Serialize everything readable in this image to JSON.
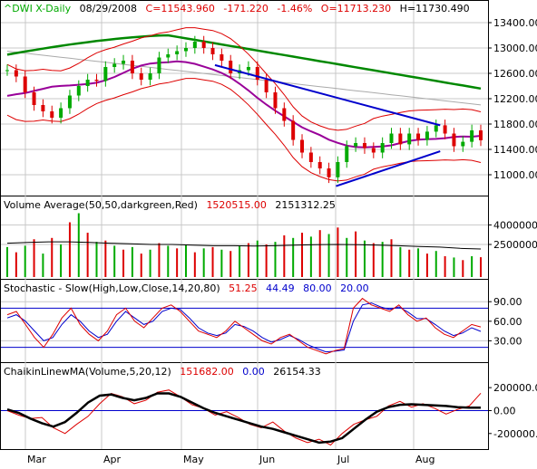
{
  "header": {
    "symbol": "^DWI X-Daily",
    "date": "08/29/2008",
    "close": "C=11543.960",
    "change": "-171.220",
    "change_pct": "-1.46%",
    "open": "O=11713.230",
    "high": "H=11730.490"
  },
  "volume_header": {
    "title": "Volume Average(50,50,darkgreen,Red)",
    "v1": "1520515.00",
    "v2": "2151312.25"
  },
  "stoch_header": {
    "title": "Stochastic - Slow(High,Low,Close,14,20,80)",
    "v1": "51.25",
    "v2": "44.49",
    "v3": "80.00",
    "v4": "20.00"
  },
  "chaikin_header": {
    "title": "ChaikinLinewMA(Volume,5,20,12)",
    "v1": "151682.00",
    "v2": "0.00",
    "v3": "26154.33"
  },
  "months": [
    "Mar",
    "Apr",
    "May",
    "Jun",
    "Jul",
    "Aug"
  ],
  "colors": {
    "green": "#00aa00",
    "red": "#dd0000",
    "blue": "#0000cc",
    "purple": "#990099",
    "darkgreen": "#008800",
    "grid": "#c8c8c8"
  },
  "chart_data": [
    {
      "type": "line",
      "panel": "price",
      "title": "^DWI X-Daily",
      "y_ticks": [
        11000,
        11400,
        11800,
        12200,
        12600,
        13000,
        13400
      ],
      "y_range": [
        10700,
        13500
      ],
      "x_months": [
        "Mar",
        "Apr",
        "May",
        "Jun",
        "Jul",
        "Aug"
      ],
      "close_series": [
        12650,
        12550,
        12300,
        12100,
        12000,
        11900,
        12050,
        12250,
        12400,
        12500,
        12480,
        12700,
        12750,
        12800,
        12600,
        12500,
        12600,
        12850,
        12900,
        12950,
        13000,
        13100,
        13000,
        12900,
        12800,
        12600,
        12650,
        12700,
        12500,
        12300,
        12050,
        11850,
        11550,
        11350,
        11200,
        11100,
        10960,
        11200,
        11450,
        11500,
        11420,
        11350,
        11500,
        11650,
        11480,
        11650,
        11550,
        11680,
        11780,
        11650,
        11450,
        11520,
        11700,
        11543.96
      ],
      "series": [
        {
          "name": "Short MA (purple)"
        },
        {
          "name": "Long MA (green)"
        },
        {
          "name": "Mid MA (grey)"
        },
        {
          "name": "Bollinger bands (red)"
        }
      ],
      "trendlines": [
        {
          "label": "upper",
          "points": [
            [
              0.44,
              12730
            ],
            [
              0.905,
              11780
            ]
          ]
        },
        {
          "label": "lower",
          "points": [
            [
              0.69,
              10820
            ],
            [
              0.905,
              11370
            ]
          ]
        }
      ]
    },
    {
      "type": "bar",
      "panel": "volume",
      "y_ticks": [
        2500000,
        4000000
      ],
      "y_range": [
        0,
        5000000
      ],
      "values": [
        2300000,
        1900000,
        2400000,
        2900000,
        1800000,
        3000000,
        2500000,
        4200000,
        4900000,
        3400000,
        2700000,
        2800000,
        2400000,
        2100000,
        2300000,
        1800000,
        2100000,
        2600000,
        2400000,
        2200000,
        2500000,
        1900000,
        2200000,
        2300000,
        2100000,
        2000000,
        2400000,
        2600000,
        2800000,
        2500000,
        2700000,
        3200000,
        3000000,
        3400000,
        3100000,
        3600000,
        3300000,
        3800000,
        3000000,
        3500000,
        2800000,
        2600000,
        2700000,
        2900000,
        2300000,
        2100000,
        2200000,
        1800000,
        2000000,
        1600000,
        1500000,
        1300000,
        1600000,
        1520515
      ],
      "average": [
        2600000,
        2650000,
        2700000,
        2700000,
        2650000,
        2600000,
        2550000,
        2500000,
        2500000,
        2450000,
        2400000,
        2400000,
        2380000,
        2400000,
        2450000,
        2480000,
        2500000,
        2480000,
        2450000,
        2400000,
        2350000,
        2300000,
        2200000,
        2151312
      ]
    },
    {
      "type": "line",
      "panel": "stochastic",
      "y_ticks": [
        30,
        60,
        90
      ],
      "y_range": [
        0,
        100
      ],
      "levels": [
        80,
        20
      ],
      "series": [
        {
          "name": "%K",
          "values": [
            70,
            75,
            55,
            35,
            20,
            40,
            65,
            80,
            55,
            40,
            30,
            45,
            70,
            80,
            60,
            50,
            65,
            80,
            85,
            75,
            60,
            45,
            40,
            35,
            45,
            60,
            50,
            40,
            30,
            25,
            35,
            40,
            30,
            20,
            15,
            10,
            15,
            18,
            80,
            95,
            85,
            80,
            75,
            85,
            70,
            60,
            65,
            50,
            40,
            35,
            45,
            55,
            51.25
          ]
        },
        {
          "name": "%D",
          "values": [
            65,
            70,
            60,
            45,
            30,
            35,
            55,
            70,
            60,
            45,
            35,
            40,
            60,
            75,
            65,
            55,
            60,
            75,
            80,
            78,
            65,
            50,
            42,
            38,
            42,
            55,
            52,
            45,
            35,
            28,
            32,
            38,
            32,
            24,
            18,
            13,
            14,
            16,
            60,
            85,
            88,
            82,
            78,
            82,
            74,
            64,
            64,
            55,
            45,
            38,
            42,
            50,
            44.49
          ]
        }
      ]
    },
    {
      "type": "line",
      "panel": "chaikin",
      "y_ticks": [
        -200000,
        0,
        200000
      ],
      "y_range": [
        -320000,
        280000
      ],
      "series": [
        {
          "name": "Chaikin",
          "values": [
            0,
            -40000,
            -70000,
            -60000,
            -150000,
            -200000,
            -120000,
            -50000,
            60000,
            150000,
            120000,
            60000,
            90000,
            160000,
            180000,
            120000,
            50000,
            20000,
            -40000,
            -10000,
            -60000,
            -120000,
            -150000,
            -100000,
            -180000,
            -240000,
            -280000,
            -250000,
            -300000,
            -200000,
            -120000,
            -80000,
            -50000,
            40000,
            80000,
            30000,
            60000,
            20000,
            -30000,
            10000,
            40000,
            151682
          ]
        },
        {
          "name": "MA",
          "values": [
            10000,
            -20000,
            -70000,
            -110000,
            -140000,
            -100000,
            -20000,
            70000,
            130000,
            140000,
            110000,
            90000,
            110000,
            150000,
            150000,
            120000,
            70000,
            20000,
            -20000,
            -50000,
            -80000,
            -110000,
            -140000,
            -160000,
            -190000,
            -220000,
            -250000,
            -280000,
            -270000,
            -240000,
            -160000,
            -80000,
            -10000,
            30000,
            50000,
            55000,
            50000,
            45000,
            40000,
            30000,
            25000,
            26154.33
          ]
        }
      ]
    }
  ]
}
